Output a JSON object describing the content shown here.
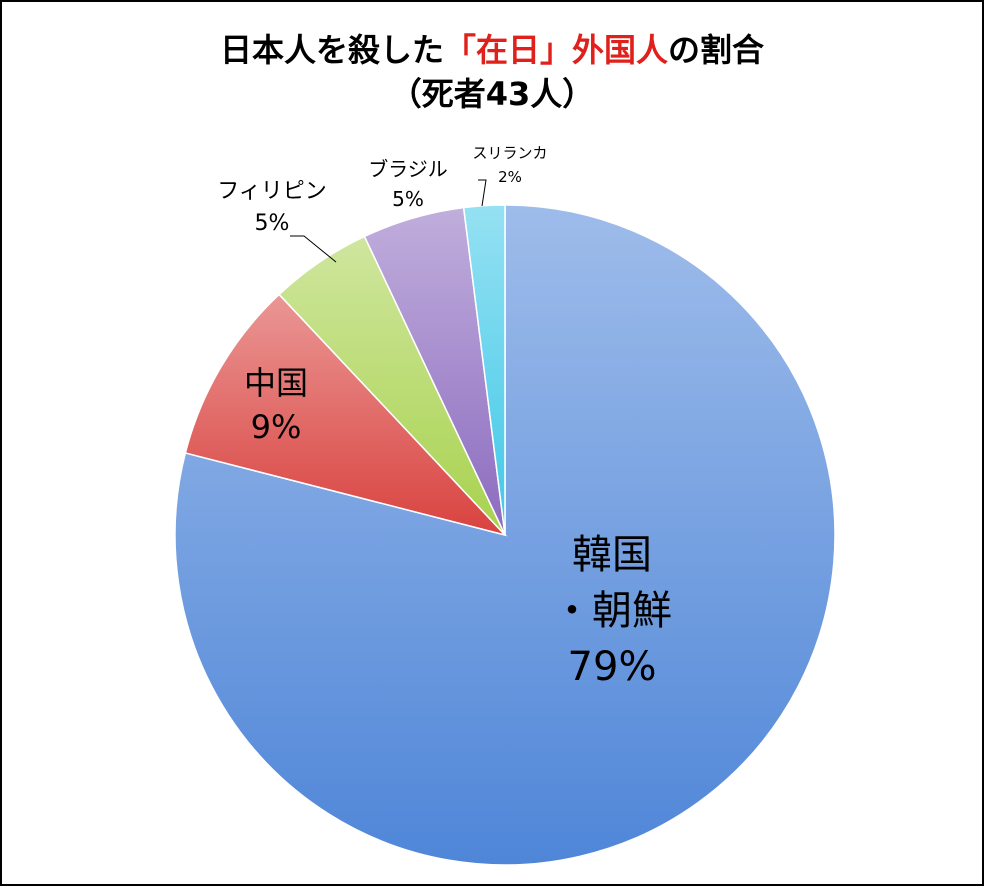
{
  "chart_data": {
    "type": "pie",
    "title_parts": [
      "日本人を殺した",
      "「在日」",
      "外国人",
      "の割合"
    ],
    "subtitle": "（死者43人）",
    "slices": [
      {
        "name": "韓国・朝鮮",
        "label_lines": [
          "韓国",
          "・朝鮮"
        ],
        "percent_label": "79%",
        "value": 79,
        "color": "#4f86d8"
      },
      {
        "name": "中国",
        "label_lines": [
          "中国"
        ],
        "percent_label": "9%",
        "value": 9,
        "color": "#d9423f"
      },
      {
        "name": "フィリピン",
        "label_lines": [
          "フィリピン"
        ],
        "percent_label": "5%",
        "value": 5,
        "color": "#a8d24e"
      },
      {
        "name": "ブラジル",
        "label_lines": [
          "ブラジル"
        ],
        "percent_label": "5%",
        "value": 5,
        "color": "#8c6bbf"
      },
      {
        "name": "スリランカ",
        "label_lines": [
          "スリランカ"
        ],
        "percent_label": "2%",
        "value": 2,
        "color": "#3fc8e8"
      }
    ]
  }
}
